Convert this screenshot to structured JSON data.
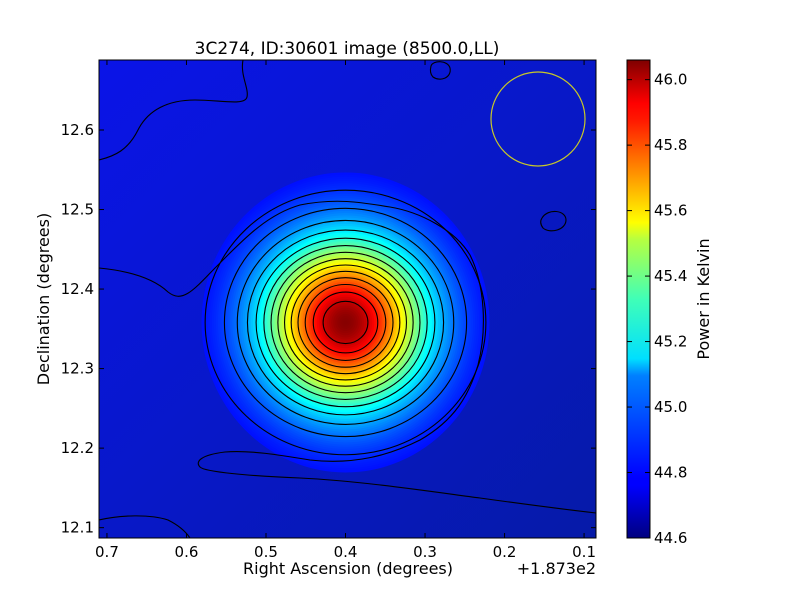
{
  "chart_data": {
    "type": "heatmap",
    "title": "3C274, ID:30601 image (8500.0,LL)",
    "xlabel": "Right Ascension (degrees)",
    "ylabel": "Declination (degrees)",
    "x_offset_label": "+1.873e2",
    "xlim": [
      0.71,
      0.085
    ],
    "ylim": [
      12.087,
      12.688
    ],
    "x_ticks": [
      0.7,
      0.6,
      0.5,
      0.4,
      0.3,
      0.2,
      0.1
    ],
    "x_tick_labels": [
      "0.7",
      "0.6",
      "0.5",
      "0.4",
      "0.3",
      "0.2",
      "0.1"
    ],
    "y_ticks": [
      12.1,
      12.2,
      12.3,
      12.4,
      12.5,
      12.6
    ],
    "y_tick_labels": [
      "12.1",
      "12.2",
      "12.3",
      "12.4",
      "12.5",
      "12.6"
    ],
    "colormap": "jet",
    "colorbar": {
      "label": "Power in Kelvin",
      "range": [
        44.6,
        46.06
      ],
      "ticks": [
        44.6,
        44.8,
        45.0,
        45.2,
        45.4,
        45.6,
        45.8,
        46.0
      ],
      "tick_labels": [
        "44.6",
        "44.8",
        "45.0",
        "45.2",
        "45.4",
        "45.6",
        "45.8",
        "46.0"
      ]
    },
    "peak": {
      "ra": 0.4,
      "dec": 12.358,
      "value": 46.05
    },
    "background_level": 44.76,
    "beam": {
      "ra": 0.155,
      "dec": 12.617,
      "color": "#c8c828"
    },
    "contour_count": 14
  }
}
